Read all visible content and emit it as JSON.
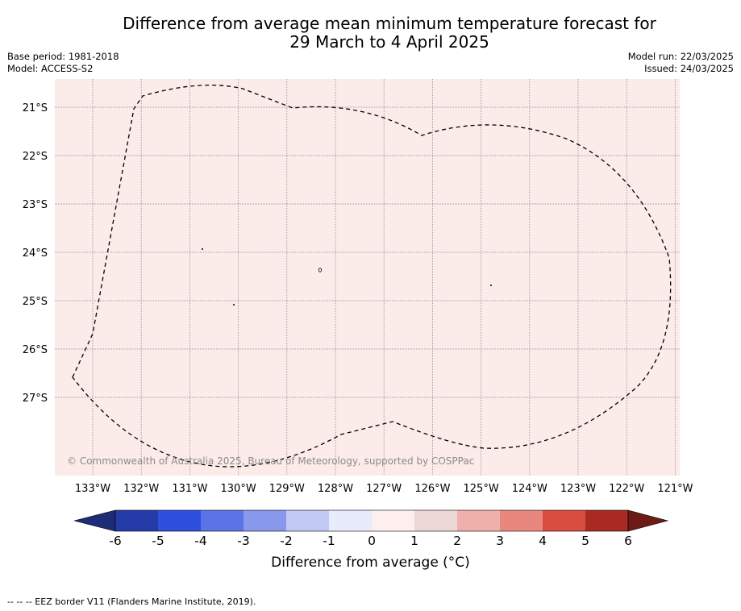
{
  "title": {
    "line1": "Difference from average mean minimum temperature forecast for",
    "line2": "29 March to 4 April 2025"
  },
  "meta": {
    "base_period": "Base period: 1981-2018",
    "model": "Model: ACCESS-S2",
    "model_run": "Model run: 22/03/2025",
    "issued": "Issued: 24/03/2025"
  },
  "map": {
    "background_color": "#fbebe9",
    "lat_labels": [
      "21°S",
      "22°S",
      "23°S",
      "24°S",
      "25°S",
      "26°S",
      "27°S"
    ],
    "lon_labels": [
      "133°W",
      "132°W",
      "131°W",
      "130°W",
      "129°W",
      "128°W",
      "127°W",
      "126°W",
      "125°W",
      "124°W",
      "123°W",
      "122°W",
      "121°W"
    ],
    "copyright": "© Commonwealth of Australia 2025, Bureau of Meteorology, supported by COSPPac"
  },
  "colorbar": {
    "labels": [
      "-6",
      "-5",
      "-4",
      "-3",
      "-2",
      "-1",
      "0",
      "1",
      "2",
      "3",
      "4",
      "5",
      "6"
    ],
    "colors": [
      "#243ba8",
      "#2f4fdf",
      "#5b73e5",
      "#8898ec",
      "#c2c9f4",
      "#e8ebfb",
      "#fcefed",
      "#ecd7d7",
      "#eeb0aa",
      "#e7877e",
      "#d94c40",
      "#a92a22"
    ],
    "under_color": "#1e2c78",
    "over_color": "#6e1a16",
    "title": "Difference from average (°C)"
  },
  "legend_note": "-- -- -- EEZ border V11 (Flanders Marine Institute, 2019)."
}
